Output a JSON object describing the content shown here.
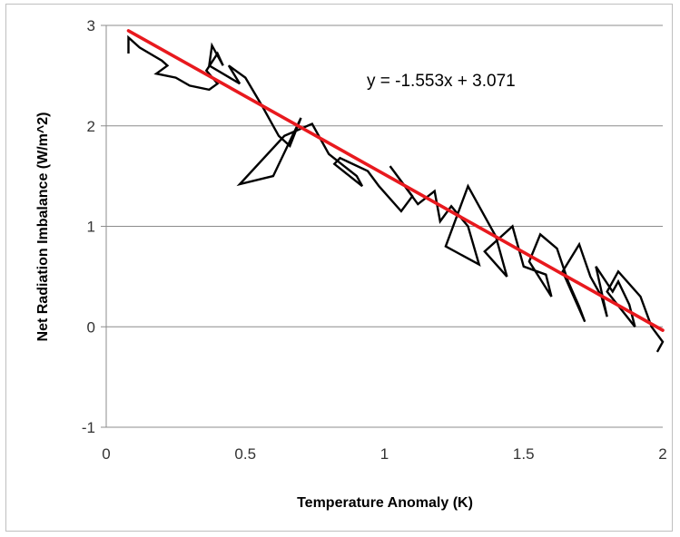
{
  "chart_data": {
    "type": "line",
    "xlabel": "Temperature Anomaly (K)",
    "ylabel": "Net Radiation Imbalance (W/m^2)",
    "xlim": [
      0,
      2
    ],
    "ylim": [
      -1,
      3
    ],
    "xticks": [
      "0",
      "0.5",
      "1",
      "1.5",
      "2"
    ],
    "yticks": [
      "-1",
      "0",
      "1",
      "2",
      "3"
    ],
    "grid": "horizontal",
    "annotation": "y = -1.553x + 3.071",
    "trendline": {
      "slope": -1.553,
      "intercept": 3.071,
      "color": "#e8191e"
    },
    "series_color": "#000000",
    "series": [
      {
        "x": [
          0.08,
          0.08,
          0.12,
          0.2,
          0.22,
          0.18,
          0.25,
          0.3,
          0.37,
          0.4,
          0.36,
          0.4,
          0.42,
          0.38,
          0.37,
          0.48,
          0.44,
          0.5,
          0.56,
          0.62,
          0.66,
          0.7,
          0.6,
          0.48,
          0.64,
          0.74,
          0.8,
          0.9,
          0.92,
          0.82,
          0.84,
          0.94,
          0.98,
          1.06,
          1.1,
          1.02,
          1.12,
          1.18,
          1.2,
          1.24,
          1.3,
          1.34,
          1.22,
          1.3,
          1.4,
          1.44,
          1.36,
          1.46,
          1.5,
          1.58,
          1.6,
          1.52,
          1.56,
          1.62,
          1.66,
          1.7,
          1.72,
          1.64,
          1.7,
          1.74,
          1.78,
          1.8,
          1.76,
          1.82,
          1.84,
          1.88,
          1.9,
          1.8,
          1.84,
          1.92,
          1.96,
          2.0,
          1.98
        ],
        "y": [
          2.72,
          2.88,
          2.78,
          2.65,
          2.6,
          2.52,
          2.48,
          2.4,
          2.36,
          2.42,
          2.55,
          2.72,
          2.6,
          2.8,
          2.6,
          2.42,
          2.6,
          2.48,
          2.2,
          1.9,
          1.8,
          2.08,
          1.5,
          1.42,
          1.9,
          2.02,
          1.72,
          1.5,
          1.4,
          1.62,
          1.68,
          1.55,
          1.4,
          1.15,
          1.3,
          1.6,
          1.22,
          1.35,
          1.05,
          1.2,
          1.0,
          0.62,
          0.8,
          1.4,
          0.9,
          0.5,
          0.75,
          1.0,
          0.6,
          0.52,
          0.3,
          0.65,
          0.92,
          0.78,
          0.45,
          0.2,
          0.05,
          0.55,
          0.82,
          0.5,
          0.3,
          0.1,
          0.6,
          0.35,
          0.45,
          0.22,
          0.0,
          0.35,
          0.55,
          0.3,
          0.0,
          -0.15,
          -0.25
        ]
      }
    ]
  }
}
